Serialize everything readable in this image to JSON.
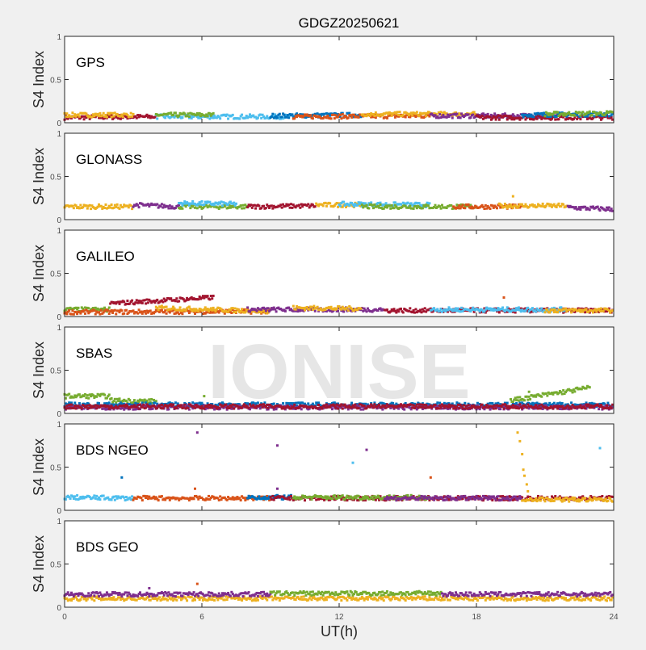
{
  "chart_data": {
    "type": "scatter",
    "title": "GDGZ20250621",
    "xlabel": "UT(h)",
    "ylabel": "S4 Index",
    "xlim": [
      0,
      24
    ],
    "ylim": [
      0,
      1
    ],
    "xticks": [
      "0",
      "6",
      "12",
      "18",
      "24"
    ],
    "yticks": [
      "0",
      "0.5",
      "1"
    ],
    "watermark": "IONISE",
    "colors": {
      "blue": "#0072BD",
      "orange": "#D95319",
      "yellow": "#EDB120",
      "purple": "#7E2F8E",
      "green": "#77AC30",
      "cyan": "#4DBEEE",
      "darkred": "#A2142F"
    },
    "panels": [
      {
        "label": "GPS",
        "series": [
          {
            "color": "darkred",
            "x": [
              0,
              4
            ],
            "y": [
              0.06,
              0.07
            ]
          },
          {
            "color": "yellow",
            "x": [
              0,
              3
            ],
            "y": [
              0.09,
              0.09
            ]
          },
          {
            "color": "cyan",
            "x": [
              4,
              10
            ],
            "y": [
              0.07,
              0.07
            ]
          },
          {
            "color": "green",
            "x": [
              4,
              6.5
            ],
            "y": [
              0.09,
              0.09
            ]
          },
          {
            "color": "blue",
            "x": [
              9,
              13
            ],
            "y": [
              0.08,
              0.09
            ]
          },
          {
            "color": "orange",
            "x": [
              10,
              16
            ],
            "y": [
              0.07,
              0.08
            ]
          },
          {
            "color": "yellow",
            "x": [
              13,
              18
            ],
            "y": [
              0.1,
              0.1
            ]
          },
          {
            "color": "purple",
            "x": [
              16,
              22
            ],
            "y": [
              0.08,
              0.08
            ]
          },
          {
            "color": "darkred",
            "x": [
              18,
              24
            ],
            "y": [
              0.06,
              0.06
            ]
          },
          {
            "color": "blue",
            "x": [
              20,
              24
            ],
            "y": [
              0.09,
              0.1
            ]
          },
          {
            "color": "green",
            "x": [
              21,
              24
            ],
            "y": [
              0.1,
              0.11
            ]
          }
        ],
        "outliers": []
      },
      {
        "label": "GLONASS",
        "series": [
          {
            "color": "yellow",
            "x": [
              0,
              3
            ],
            "y": [
              0.15,
              0.15
            ]
          },
          {
            "color": "purple",
            "x": [
              3,
              5
            ],
            "y": [
              0.17,
              0.15
            ]
          },
          {
            "color": "green",
            "x": [
              5,
              8
            ],
            "y": [
              0.15,
              0.15
            ]
          },
          {
            "color": "cyan",
            "x": [
              5,
              7.5
            ],
            "y": [
              0.19,
              0.18
            ]
          },
          {
            "color": "darkred",
            "x": [
              8,
              11
            ],
            "y": [
              0.15,
              0.16
            ]
          },
          {
            "color": "yellow",
            "x": [
              11,
              13
            ],
            "y": [
              0.17,
              0.17
            ]
          },
          {
            "color": "cyan",
            "x": [
              12,
              16
            ],
            "y": [
              0.18,
              0.17
            ]
          },
          {
            "color": "green",
            "x": [
              13,
              18
            ],
            "y": [
              0.15,
              0.15
            ]
          },
          {
            "color": "orange",
            "x": [
              17,
              20
            ],
            "y": [
              0.15,
              0.15
            ]
          },
          {
            "color": "yellow",
            "x": [
              19,
              22
            ],
            "y": [
              0.16,
              0.16
            ]
          },
          {
            "color": "purple",
            "x": [
              22,
              24
            ],
            "y": [
              0.14,
              0.12
            ]
          }
        ],
        "outliers": [
          {
            "color": "yellow",
            "x": 19.6,
            "y": 0.27
          }
        ]
      },
      {
        "label": "GALILEO",
        "series": [
          {
            "color": "green",
            "x": [
              0,
              2
            ],
            "y": [
              0.08,
              0.08
            ]
          },
          {
            "color": "orange",
            "x": [
              0,
              9
            ],
            "y": [
              0.05,
              0.06
            ]
          },
          {
            "color": "darkred",
            "x": [
              2,
              6.5
            ],
            "y": [
              0.15,
              0.22
            ]
          },
          {
            "color": "yellow",
            "x": [
              4,
              9
            ],
            "y": [
              0.1,
              0.06
            ]
          },
          {
            "color": "purple",
            "x": [
              8,
              14
            ],
            "y": [
              0.08,
              0.08
            ]
          },
          {
            "color": "yellow",
            "x": [
              10,
              13
            ],
            "y": [
              0.1,
              0.09
            ]
          },
          {
            "color": "darkred",
            "x": [
              14,
              24
            ],
            "y": [
              0.07,
              0.07
            ]
          },
          {
            "color": "cyan",
            "x": [
              16,
              22
            ],
            "y": [
              0.08,
              0.08
            ]
          },
          {
            "color": "yellow",
            "x": [
              21,
              24
            ],
            "y": [
              0.07,
              0.07
            ]
          }
        ],
        "outliers": [
          {
            "color": "orange",
            "x": 19.2,
            "y": 0.22
          }
        ]
      },
      {
        "label": "SBAS",
        "series": [
          {
            "color": "green",
            "x": [
              0,
              2
            ],
            "y": [
              0.2,
              0.2
            ]
          },
          {
            "color": "green",
            "x": [
              2,
              4
            ],
            "y": [
              0.15,
              0.14
            ]
          },
          {
            "color": "blue",
            "x": [
              0,
              24
            ],
            "y": [
              0.1,
              0.1
            ]
          },
          {
            "color": "purple",
            "x": [
              0,
              24
            ],
            "y": [
              0.07,
              0.07
            ]
          },
          {
            "color": "darkred",
            "x": [
              0,
              24
            ],
            "y": [
              0.08,
              0.08
            ]
          },
          {
            "color": "green",
            "x": [
              19.5,
              23
            ],
            "y": [
              0.15,
              0.3
            ]
          }
        ],
        "outliers": [
          {
            "color": "green",
            "x": 6.1,
            "y": 0.2
          },
          {
            "color": "green",
            "x": 20.3,
            "y": 0.25
          }
        ]
      },
      {
        "label": "BDS NGEO",
        "series": [
          {
            "color": "cyan",
            "x": [
              0,
              3
            ],
            "y": [
              0.15,
              0.14
            ]
          },
          {
            "color": "orange",
            "x": [
              3,
              9
            ],
            "y": [
              0.14,
              0.14
            ]
          },
          {
            "color": "blue",
            "x": [
              8,
              10
            ],
            "y": [
              0.15,
              0.15
            ]
          },
          {
            "color": "darkred",
            "x": [
              9,
              24
            ],
            "y": [
              0.14,
              0.14
            ]
          },
          {
            "color": "green",
            "x": [
              10,
              16
            ],
            "y": [
              0.15,
              0.15
            ]
          },
          {
            "color": "purple",
            "x": [
              14,
              20
            ],
            "y": [
              0.14,
              0.14
            ]
          },
          {
            "color": "yellow",
            "x": [
              20,
              24
            ],
            "y": [
              0.13,
              0.12
            ]
          }
        ],
        "outliers": [
          {
            "color": "purple",
            "x": 5.8,
            "y": 0.9
          },
          {
            "color": "purple",
            "x": 9.3,
            "y": 0.75
          },
          {
            "color": "purple",
            "x": 13.2,
            "y": 0.7
          },
          {
            "color": "cyan",
            "x": 12.6,
            "y": 0.55
          },
          {
            "color": "blue",
            "x": 2.5,
            "y": 0.38
          },
          {
            "color": "orange",
            "x": 16,
            "y": 0.38
          },
          {
            "color": "cyan",
            "x": 23.4,
            "y": 0.72
          },
          {
            "color": "orange",
            "x": 5.7,
            "y": 0.25
          },
          {
            "color": "purple",
            "x": 9.3,
            "y": 0.25
          },
          {
            "color": "yellow",
            "x": 19.8,
            "y": 0.9
          },
          {
            "color": "yellow",
            "x": 19.9,
            "y": 0.8
          },
          {
            "color": "yellow",
            "x": 20.0,
            "y": 0.65
          },
          {
            "color": "yellow",
            "x": 20.05,
            "y": 0.47
          },
          {
            "color": "yellow",
            "x": 20.1,
            "y": 0.4
          },
          {
            "color": "yellow",
            "x": 20.2,
            "y": 0.3
          },
          {
            "color": "yellow",
            "x": 20.25,
            "y": 0.22
          }
        ]
      },
      {
        "label": "BDS GEO",
        "series": [
          {
            "color": "yellow",
            "x": [
              0,
              24
            ],
            "y": [
              0.1,
              0.1
            ]
          },
          {
            "color": "purple",
            "x": [
              0,
              9
            ],
            "y": [
              0.15,
              0.15
            ]
          },
          {
            "color": "green",
            "x": [
              9,
              16.5
            ],
            "y": [
              0.16,
              0.16
            ]
          },
          {
            "color": "purple",
            "x": [
              16.5,
              24
            ],
            "y": [
              0.15,
              0.15
            ]
          }
        ],
        "outliers": [
          {
            "color": "orange",
            "x": 5.8,
            "y": 0.27
          },
          {
            "color": "purple",
            "x": 3.7,
            "y": 0.22
          }
        ]
      }
    ]
  }
}
